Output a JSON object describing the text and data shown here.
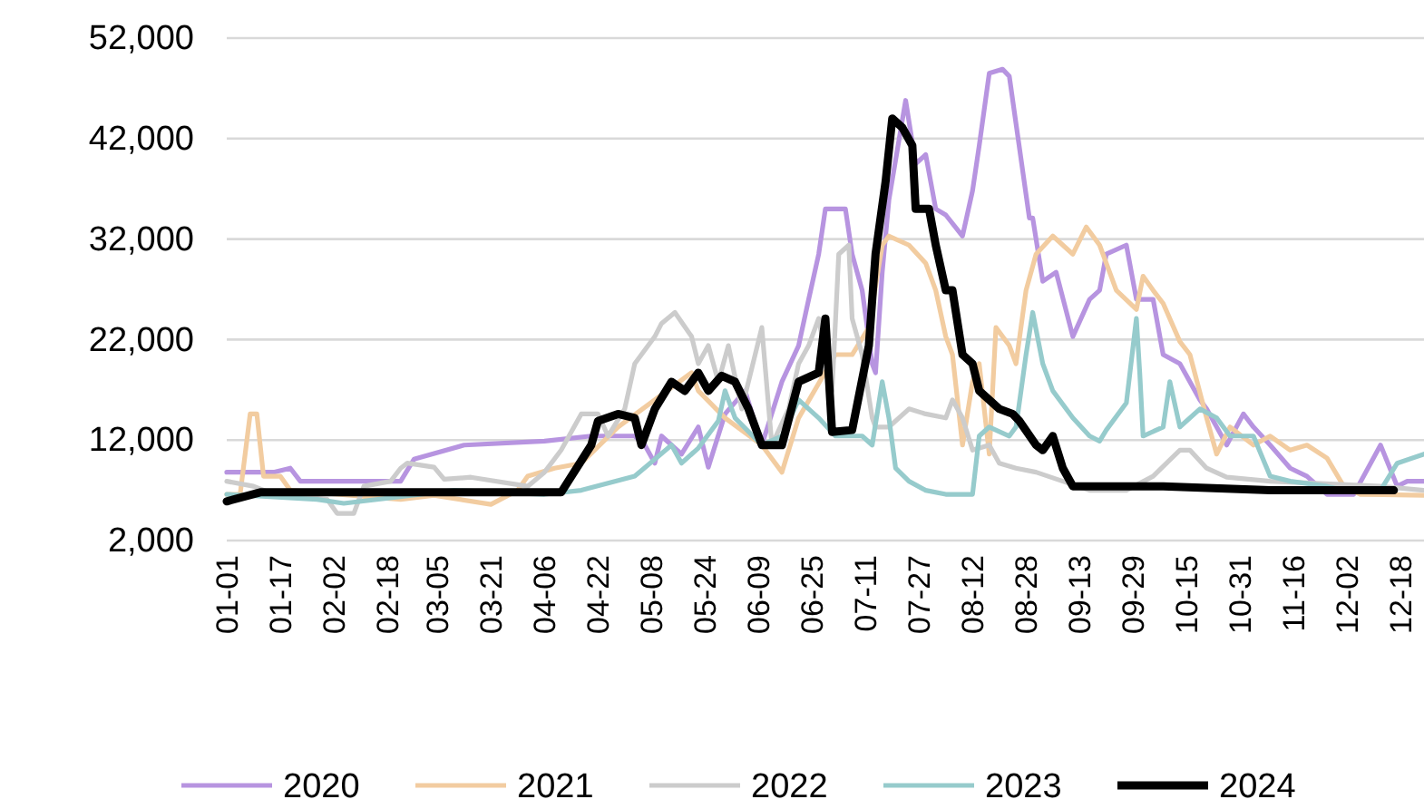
{
  "chart_data": {
    "type": "line",
    "legend": "bottom",
    "grid": "y",
    "line_style": "solid",
    "marker": "none",
    "ylim": [
      2000,
      52000
    ],
    "yticks": [
      {
        "value": 2000,
        "label": "2,000"
      },
      {
        "value": 12000,
        "label": "12,000"
      },
      {
        "value": 22000,
        "label": "22,000"
      },
      {
        "value": 32000,
        "label": "32,000"
      },
      {
        "value": 42000,
        "label": "42,000"
      },
      {
        "value": 52000,
        "label": "52,000"
      }
    ],
    "xlim": [
      "--01-01",
      "--12-25"
    ],
    "xticks": [
      {
        "value": "--01-01",
        "label": "01-01"
      },
      {
        "value": "--01-17",
        "label": "01-17"
      },
      {
        "value": "--02-02",
        "label": "02-02"
      },
      {
        "value": "--02-18",
        "label": "02-18"
      },
      {
        "value": "--03-05",
        "label": "03-05"
      },
      {
        "value": "--03-21",
        "label": "03-21"
      },
      {
        "value": "--04-06",
        "label": "04-06"
      },
      {
        "value": "--04-22",
        "label": "04-22"
      },
      {
        "value": "--05-08",
        "label": "05-08"
      },
      {
        "value": "--05-24",
        "label": "05-24"
      },
      {
        "value": "--06-09",
        "label": "06-09"
      },
      {
        "value": "--06-25",
        "label": "06-25"
      },
      {
        "value": "--07-11",
        "label": "07-11"
      },
      {
        "value": "--07-27",
        "label": "07-27"
      },
      {
        "value": "--08-12",
        "label": "08-12"
      },
      {
        "value": "--08-28",
        "label": "08-28"
      },
      {
        "value": "--09-13",
        "label": "09-13"
      },
      {
        "value": "--09-29",
        "label": "09-29"
      },
      {
        "value": "--10-15",
        "label": "10-15"
      },
      {
        "value": "--10-31",
        "label": "10-31"
      },
      {
        "value": "--11-16",
        "label": "11-16"
      },
      {
        "value": "--12-02",
        "label": "12-02"
      },
      {
        "value": "--12-18",
        "label": "12-18"
      }
    ],
    "series": [
      {
        "name": "2020",
        "color": "#b794e0",
        "x": [
          "--01-01",
          "--01-15",
          "--01-20",
          "--01-23",
          "--02-22",
          "--02-26",
          "--03-13",
          "--04-06",
          "--04-20",
          "--04-28",
          "--05-03",
          "--05-06",
          "--05-09",
          "--05-11",
          "--05-17",
          "--05-22",
          "--05-25",
          "--05-30",
          "--06-05",
          "--06-10",
          "--06-16",
          "--06-21",
          "--06-24",
          "--06-27",
          "--06-29",
          "--07-05",
          "--07-07",
          "--07-10",
          "--07-13",
          "--07-14",
          "--07-16",
          "--07-18",
          "--07-23",
          "--07-26",
          "--07-29",
          "--08-01",
          "--08-04",
          "--08-09",
          "--08-12",
          "--08-14",
          "--08-17",
          "--08-21",
          "--08-23",
          "--08-29",
          "--08-30",
          "--09-02",
          "--09-06",
          "--09-11",
          "--09-16",
          "--09-19",
          "--09-21",
          "--09-27",
          "--09-30",
          "--10-05",
          "--10-08",
          "--10-13",
          "--10-19",
          "--10-21",
          "--10-27",
          "--11-01",
          "--11-04",
          "--11-09",
          "--11-15",
          "--11-20",
          "--11-26",
          "--12-04",
          "--12-12",
          "--12-17",
          "--12-20",
          "--12-25"
        ],
        "values": [
          8800,
          8800,
          9200,
          7900,
          7900,
          10100,
          11500,
          11900,
          12400,
          12400,
          12400,
          11500,
          9700,
          12400,
          10600,
          13300,
          9300,
          14600,
          16900,
          11500,
          17800,
          21400,
          26000,
          30500,
          35000,
          35000,
          30500,
          26900,
          19600,
          18700,
          28700,
          35900,
          45800,
          39500,
          40400,
          35000,
          34400,
          32300,
          36800,
          41300,
          48500,
          48900,
          48200,
          34100,
          34100,
          27800,
          28700,
          22300,
          26000,
          26900,
          30500,
          31400,
          26000,
          26000,
          20500,
          19600,
          16000,
          15100,
          11500,
          14600,
          13300,
          11500,
          9200,
          8400,
          6600,
          6600,
          11500,
          7400,
          7900,
          7900
        ]
      },
      {
        "name": "2021",
        "color": "#f2cca0",
        "x": [
          "--01-01",
          "--01-05",
          "--01-08",
          "--01-10",
          "--01-12",
          "--01-17",
          "--01-20",
          "--02-22",
          "--03-04",
          "--03-21",
          "--03-29",
          "--04-01",
          "--04-09",
          "--04-17",
          "--04-28",
          "--05-20",
          "--05-22",
          "--05-30",
          "--06-10",
          "--06-16",
          "--06-21",
          "--07-02",
          "--07-07",
          "--07-12",
          "--07-16",
          "--07-18",
          "--07-24",
          "--07-29",
          "--08-01",
          "--08-04",
          "--08-06",
          "--08-09",
          "--08-12",
          "--08-14",
          "--08-17",
          "--08-19",
          "--08-23",
          "--08-25",
          "--08-28",
          "--08-31",
          "--09-05",
          "--09-11",
          "--09-15",
          "--09-19",
          "--09-24",
          "--09-30",
          "--10-02",
          "--10-05",
          "--10-08",
          "--10-13",
          "--10-16",
          "--10-21",
          "--10-24",
          "--10-28",
          "--11-04",
          "--11-09",
          "--11-15",
          "--11-20",
          "--11-26",
          "--12-01",
          "--12-06",
          "--12-25"
        ],
        "values": [
          6600,
          6600,
          14600,
          14600,
          8400,
          8400,
          7000,
          6100,
          6500,
          5600,
          7000,
          8400,
          9200,
          9700,
          13300,
          18700,
          16900,
          14200,
          11500,
          8800,
          14200,
          20500,
          20500,
          23200,
          31400,
          32300,
          31400,
          29600,
          26900,
          22300,
          20500,
          11500,
          17800,
          19600,
          10600,
          23200,
          21400,
          19600,
          26900,
          30500,
          32300,
          30500,
          33200,
          31400,
          26900,
          25000,
          28300,
          26900,
          25600,
          21800,
          20500,
          14200,
          10600,
          13300,
          11500,
          12400,
          11000,
          11500,
          10200,
          7400,
          6600,
          6500
        ]
      },
      {
        "name": "2022",
        "color": "#cccccc",
        "x": [
          "--01-01",
          "--01-09",
          "--01-15",
          "--01-31",
          "--02-03",
          "--02-08",
          "--02-11",
          "--02-19",
          "--02-22",
          "--02-24",
          "--03-04",
          "--03-07",
          "--03-15",
          "--04-01",
          "--04-06",
          "--04-11",
          "--04-17",
          "--04-22",
          "--04-25",
          "--04-30",
          "--05-03",
          "--05-09",
          "--05-11",
          "--05-15",
          "--05-20",
          "--05-22",
          "--05-25",
          "--05-28",
          "--05-31",
          "--06-04",
          "--06-10",
          "--06-13",
          "--06-18",
          "--06-21",
          "--06-24",
          "--06-27",
          "--07-01",
          "--07-03",
          "--07-06",
          "--07-07",
          "--07-10",
          "--07-13",
          "--07-14",
          "--07-18",
          "--07-24",
          "--07-29",
          "--08-04",
          "--08-06",
          "--08-09",
          "--08-12",
          "--08-17",
          "--08-20",
          "--08-25",
          "--08-31",
          "--09-08",
          "--09-16",
          "--09-27",
          "--10-05",
          "--10-13",
          "--10-16",
          "--10-21",
          "--10-27",
          "--11-09",
          "--12-12",
          "--12-25"
        ],
        "values": [
          7900,
          7400,
          6600,
          6100,
          4700,
          4700,
          7400,
          7900,
          9200,
          9700,
          9300,
          8100,
          8300,
          7400,
          8800,
          11000,
          14600,
          14600,
          12400,
          15100,
          19600,
          22300,
          23600,
          24700,
          22300,
          19600,
          21400,
          17800,
          21400,
          15100,
          23200,
          11500,
          15100,
          19600,
          21400,
          24100,
          16900,
          30500,
          31400,
          24100,
          20500,
          14200,
          13300,
          13300,
          15100,
          14600,
          14200,
          16000,
          14200,
          11000,
          11500,
          9700,
          9200,
          8800,
          7900,
          7000,
          7000,
          8400,
          11000,
          11000,
          9200,
          8300,
          7900,
          7400,
          7000
        ]
      },
      {
        "name": "2023",
        "color": "#96cbcc",
        "x": [
          "--01-01",
          "--01-28",
          "--02-05",
          "--03-10",
          "--04-06",
          "--04-17",
          "--05-03",
          "--05-14",
          "--05-17",
          "--05-22",
          "--05-28",
          "--05-30",
          "--06-02",
          "--06-10",
          "--06-16",
          "--06-21",
          "--06-27",
          "--07-02",
          "--07-10",
          "--07-13",
          "--07-16",
          "--07-18",
          "--07-20",
          "--07-24",
          "--07-29",
          "--08-04",
          "--08-12",
          "--08-14",
          "--08-17",
          "--08-23",
          "--08-25",
          "--08-28",
          "--08-30",
          "--09-02",
          "--09-05",
          "--09-11",
          "--09-16",
          "--09-19",
          "--09-21",
          "--09-27",
          "--09-30",
          "--10-01",
          "--10-02",
          "--10-08",
          "--10-10",
          "--10-13",
          "--10-19",
          "--10-24",
          "--10-28",
          "--11-04",
          "--11-09",
          "--11-15",
          "--11-26",
          "--12-01",
          "--12-12",
          "--12-17",
          "--12-25"
        ],
        "values": [
          6600,
          6100,
          5700,
          7000,
          6600,
          7000,
          8400,
          11500,
          9700,
          11200,
          13900,
          16900,
          14200,
          11500,
          12400,
          16000,
          14200,
          12400,
          12400,
          11500,
          17800,
          14200,
          9200,
          7900,
          7000,
          6600,
          6600,
          12400,
          13300,
          12400,
          13300,
          20500,
          24700,
          19600,
          16900,
          14200,
          12400,
          11900,
          13000,
          15700,
          24100,
          18700,
          12400,
          13300,
          17800,
          13300,
          15100,
          14200,
          12400,
          12400,
          8400,
          7900,
          7400,
          7000,
          7000,
          9700,
          10600
        ]
      },
      {
        "name": "2024",
        "color": "#000000",
        "x": [
          "--01-01",
          "--01-11",
          "--04-11",
          "--04-20",
          "--04-22",
          "--04-28",
          "--05-03",
          "--05-05",
          "--05-09",
          "--05-14",
          "--05-18",
          "--05-22",
          "--05-25",
          "--05-29",
          "--06-02",
          "--06-06",
          "--06-10",
          "--06-16",
          "--06-21",
          "--06-27",
          "--06-29",
          "--07-01",
          "--07-07",
          "--07-12",
          "--07-14",
          "--07-17",
          "--07-19",
          "--07-22",
          "--07-25",
          "--07-26",
          "--07-30",
          "--08-01",
          "--08-04",
          "--08-06",
          "--08-09",
          "--08-12",
          "--08-14",
          "--08-20",
          "--08-24",
          "--08-26",
          "--08-31",
          "--09-02",
          "--09-05",
          "--09-08",
          "--09-11",
          "--09-16",
          "--10-08",
          "--11-09",
          "--12-16"
        ],
        "values": [
          5900,
          6800,
          6800,
          11500,
          13900,
          14600,
          14200,
          11500,
          15100,
          17800,
          16900,
          18700,
          16900,
          18400,
          17800,
          15100,
          11500,
          11500,
          17800,
          18700,
          24100,
          12800,
          13000,
          21400,
          30500,
          37700,
          44000,
          43100,
          41300,
          35000,
          35000,
          31400,
          26900,
          26900,
          20500,
          19600,
          16900,
          15100,
          14600,
          13900,
          11500,
          11000,
          12400,
          9200,
          7400,
          7400,
          7400,
          7000,
          7000
        ]
      }
    ]
  }
}
